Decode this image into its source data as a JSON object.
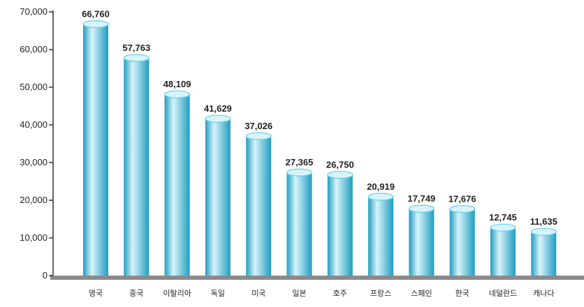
{
  "chart_data": {
    "type": "bar",
    "title": "",
    "xlabel": "",
    "ylabel": "",
    "ylim": [
      0,
      70000
    ],
    "yticks": [
      "0",
      "10,000",
      "20,000",
      "30,000",
      "40,000",
      "50,000",
      "60,000",
      "70,000"
    ],
    "ytick_values": [
      0,
      10000,
      20000,
      30000,
      40000,
      50000,
      60000,
      70000
    ],
    "grid": false,
    "bar_style": "cylinder",
    "colors": {
      "bar_light": "#d8f4fb",
      "bar_mid": "#5fd0ea",
      "bar_dark": "#1f9dc0",
      "baseline": "#8a8a8a"
    },
    "categories": [
      "영국",
      "중국",
      "이탈리아",
      "독일",
      "미국",
      "일본",
      "호주",
      "프랑스",
      "스페인",
      "한국",
      "네덜란드",
      "캐나다"
    ],
    "values": [
      66760,
      57763,
      48109,
      41629,
      37026,
      27365,
      26750,
      20919,
      17749,
      17676,
      12745,
      11635
    ],
    "value_labels": [
      "66,760",
      "57,763",
      "48,109",
      "41,629",
      "37,026",
      "27,365",
      "26,750",
      "20,919",
      "17,749",
      "17,676",
      "12,745",
      "11,635"
    ]
  }
}
